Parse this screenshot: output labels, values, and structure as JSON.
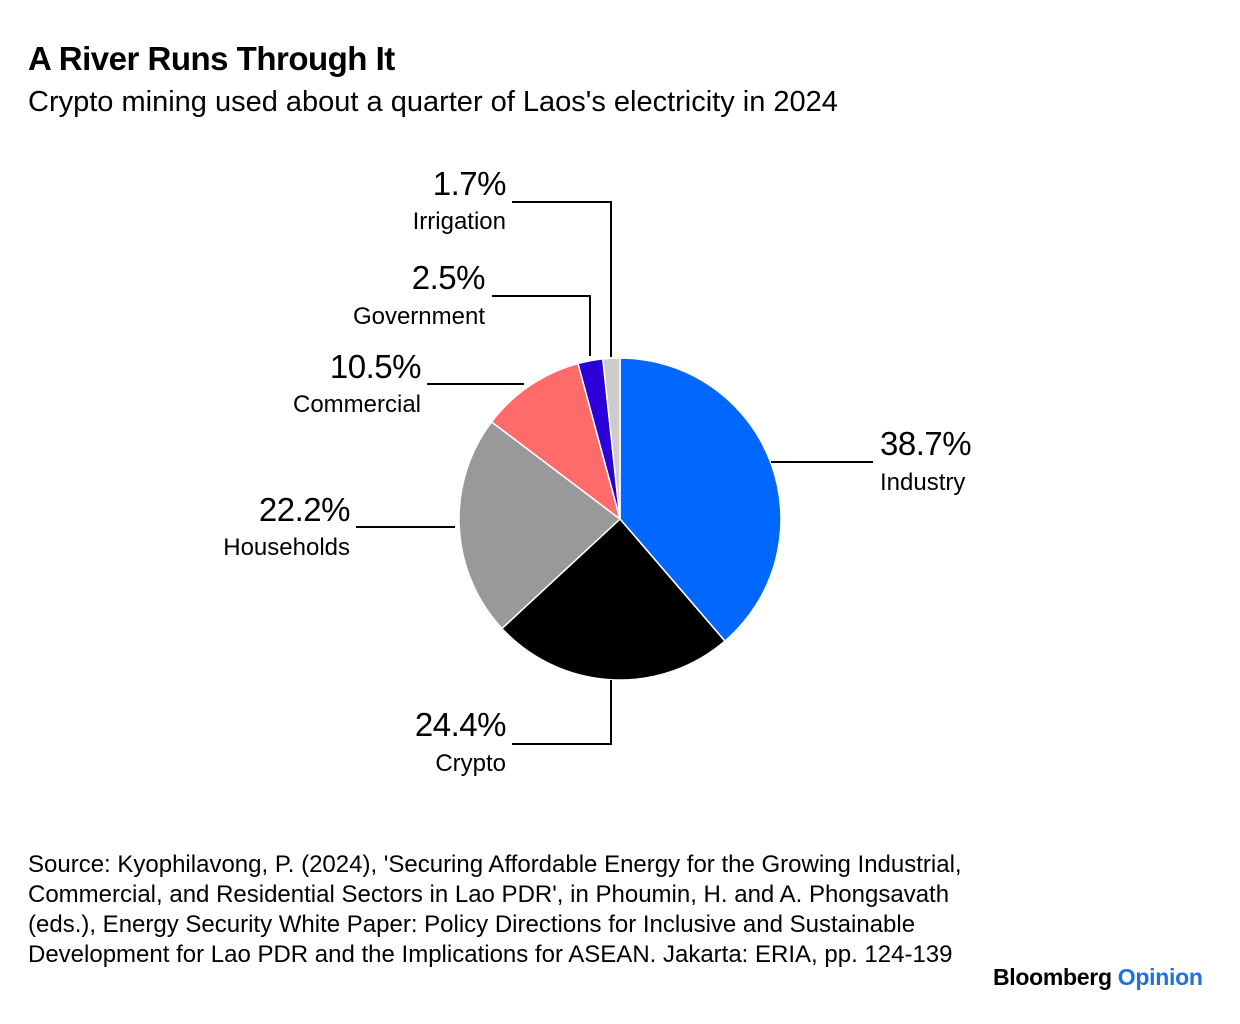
{
  "title": "A River Runs Through It",
  "subtitle": "Crypto mining used about a quarter of Laos's electricity in 2024",
  "chart_data": {
    "type": "pie",
    "start": "12 o'clock",
    "direction": "clockwise",
    "slices": [
      {
        "label": "Industry",
        "value": 38.7,
        "display": "38.7%",
        "color": "#0068ff"
      },
      {
        "label": "Crypto",
        "value": 24.4,
        "display": "24.4%",
        "color": "#000000"
      },
      {
        "label": "Households",
        "value": 22.2,
        "display": "22.2%",
        "color": "#999999"
      },
      {
        "label": "Commercial",
        "value": 10.5,
        "display": "10.5%",
        "color": "#ff6b6b"
      },
      {
        "label": "Government",
        "value": 2.5,
        "display": "2.5%",
        "color": "#2b00d9"
      },
      {
        "label": "Irrigation",
        "value": 1.7,
        "display": "1.7%",
        "color": "#cccccc"
      }
    ]
  },
  "source": "Source: Kyophilavong, P. (2024), 'Securing Affordable Energy for the Growing Industrial, Commercial, and Residential Sectors in Lao PDR', in Phoumin, H. and A. Phongsavath (eds.), Energy Security White Paper: Policy Directions for Inclusive and Sustainable Development for Lao PDR and the Implications for ASEAN. Jakarta: ERIA, pp. 124-139",
  "brand": {
    "primary": "Bloomberg",
    "secondary": "Opinion"
  }
}
